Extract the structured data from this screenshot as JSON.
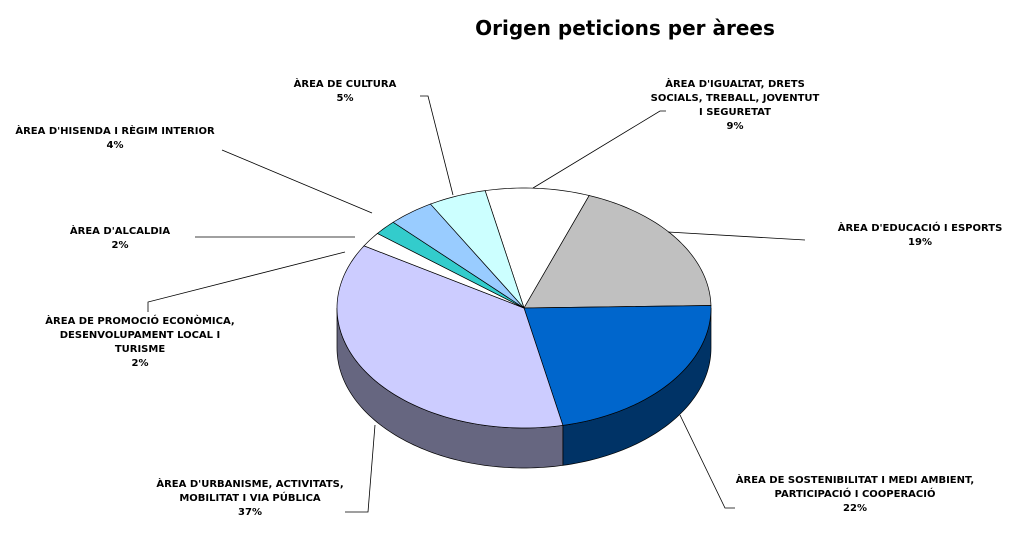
{
  "chart_data": {
    "type": "pie3d",
    "title": "Origen peticions per àrees",
    "categories": [
      "ÀREA D'IGUALTAT, DRETS SOCIALS, TREBALL, JOVENTUT I SEGURETAT",
      "ÀREA D'EDUCACIÓ I ESPORTS",
      "ÀREA DE SOSTENIBILITAT I MEDI AMBIENT, PARTICIPACIÓ I COOPERACIÓ",
      "ÀREA D'URBANISME, ACTIVITATS, MOBILITAT I VIA PÚBLICA",
      "ÀREA DE  PROMOCIÓ ECONÒMICA, DESENVOLUPAMENT LOCAL I TURISME",
      "ÀREA D'ALCALDIA",
      "ÀREA D'HISENDA I RÈGIM INTERIOR",
      "ÀREA DE CULTURA"
    ],
    "values": [
      9,
      19,
      22,
      37,
      2,
      2,
      4,
      5
    ],
    "value_labels": [
      "9%",
      "19%",
      "22%",
      "37%",
      "2%",
      "2%",
      "4%",
      "5%"
    ],
    "colors": [
      "#ffffff",
      "#c0c0c0",
      "#0066cc",
      "#ccccff",
      "#ffffff",
      "#33cccc",
      "#99ccff",
      "#ccffff"
    ]
  }
}
